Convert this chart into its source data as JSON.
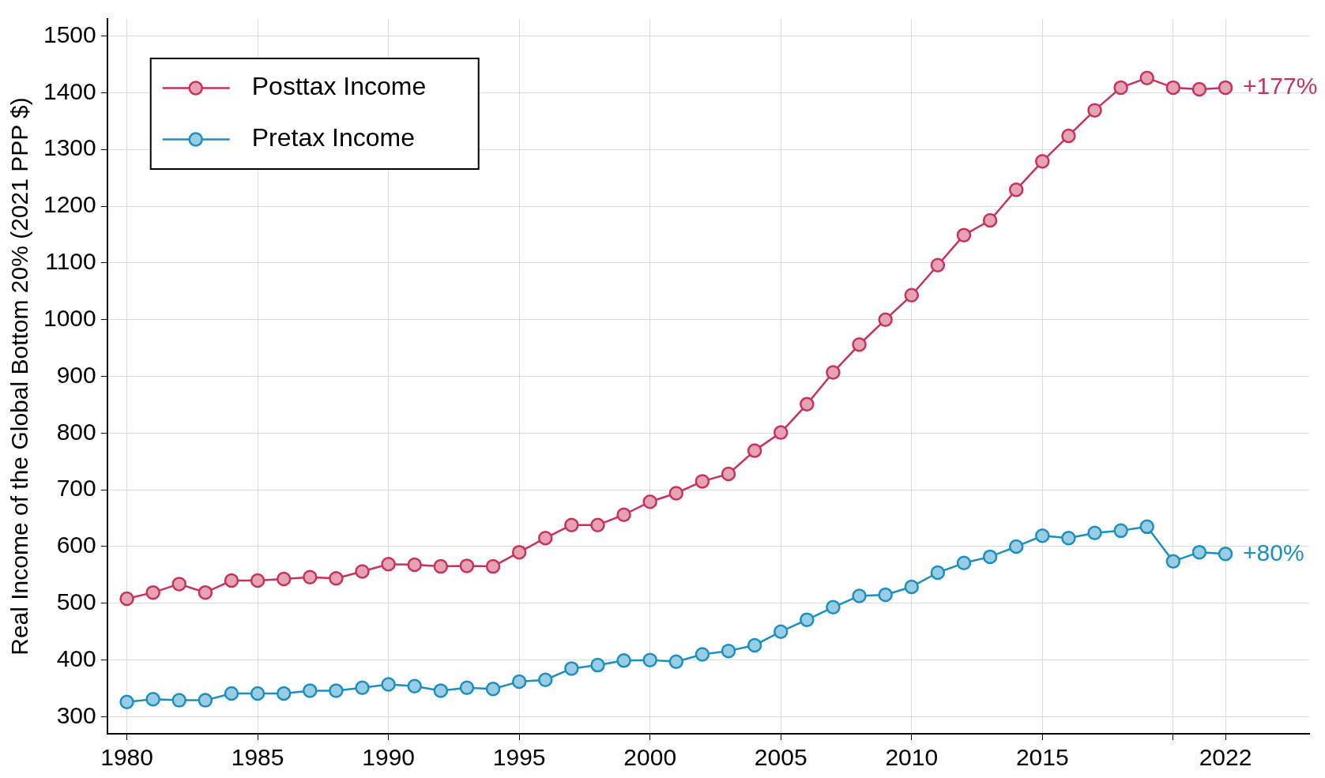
{
  "chart_data": {
    "type": "line",
    "ylabel": "Real Income of the Global Bottom 20% (2021 PPP $)",
    "x": [
      1980,
      1981,
      1982,
      1983,
      1984,
      1985,
      1986,
      1987,
      1988,
      1989,
      1990,
      1991,
      1992,
      1993,
      1994,
      1995,
      1996,
      1997,
      1998,
      1999,
      2000,
      2001,
      2002,
      2003,
      2004,
      2005,
      2006,
      2007,
      2008,
      2009,
      2010,
      2011,
      2012,
      2013,
      2014,
      2015,
      2016,
      2017,
      2018,
      2019,
      2020,
      2021,
      2022
    ],
    "series": [
      {
        "name": "Posttax Income",
        "color": "#c8325a",
        "values": [
          508,
          519,
          534,
          519,
          540,
          540,
          543,
          546,
          544,
          556,
          569,
          568,
          565,
          566,
          565,
          590,
          615,
          638,
          638,
          656,
          679,
          694,
          715,
          728,
          769,
          801,
          851,
          907,
          956,
          1000,
          1043,
          1096,
          1149,
          1175,
          1229,
          1279,
          1324,
          1369,
          1409,
          1426,
          1409,
          1406,
          1409
        ]
      },
      {
        "name": "Pretax Income",
        "color": "#1a8fc0",
        "values": [
          326,
          331,
          329,
          329,
          341,
          341,
          341,
          346,
          346,
          351,
          357,
          354,
          346,
          351,
          349,
          362,
          365,
          385,
          391,
          399,
          400,
          397,
          410,
          416,
          426,
          450,
          471,
          493,
          513,
          515,
          529,
          554,
          571,
          582,
          600,
          619,
          615,
          624,
          628,
          635,
          574,
          590,
          587
        ]
      }
    ],
    "xlim": [
      1979.25,
      2025.2
    ],
    "xticks": [
      1980,
      1985,
      1990,
      1995,
      2000,
      2005,
      2010,
      2015,
      {
        "value": 2020,
        "label": null
      },
      2022
    ],
    "ylim": [
      270,
      1530
    ],
    "yticks": [
      300,
      400,
      500,
      600,
      700,
      800,
      900,
      1000,
      1100,
      1200,
      1300,
      1400,
      1500
    ],
    "grid": true,
    "legend": "top left",
    "marker": "circle",
    "line_style": "solid",
    "annotations": [
      {
        "text": "+177%",
        "x": 2022,
        "y": 1409
      },
      {
        "text": "+80%",
        "x": 2022,
        "y": 587
      }
    ]
  }
}
